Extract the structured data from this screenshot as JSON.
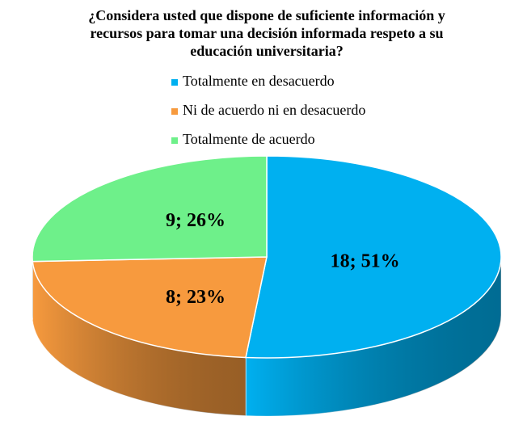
{
  "chart_data": {
    "type": "pie",
    "title": "¿Considera usted que dispone de suficiente información y recursos para tomar una decisión informada respeto a su educación universitaria?",
    "categories": [
      "Totalmente en desacuerdo",
      "Ni de acuerdo ni en desacuerdo",
      "Totalmente de acuerdo"
    ],
    "values": [
      18,
      8,
      9
    ],
    "value_labels": [
      "18; 51%",
      "8; 23%",
      "9; 26%"
    ],
    "colors": [
      "#00b0f0",
      "#f79a3e",
      "#6ef08a"
    ],
    "legend": "top"
  }
}
